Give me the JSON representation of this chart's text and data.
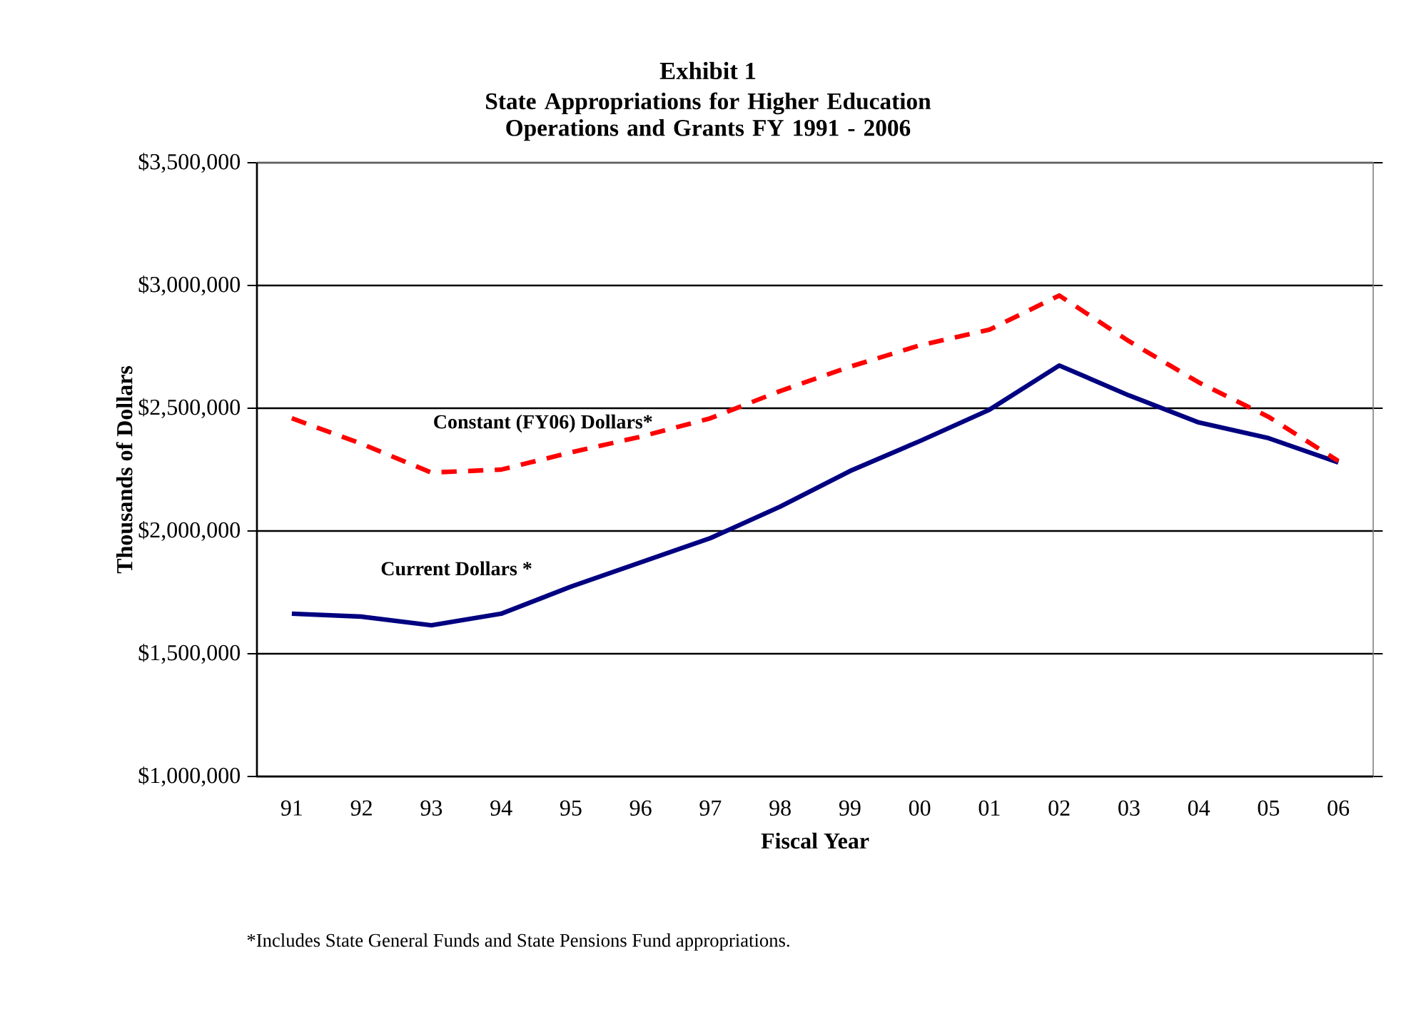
{
  "chart_data": {
    "type": "line",
    "title": "Exhibit 1",
    "subtitle": "State Appropriations for Higher Education Operations and Grants FY 1991 - 2006",
    "xlabel": "Fiscal Year",
    "ylabel": "Thousands of Dollars",
    "categories": [
      "91",
      "92",
      "93",
      "94",
      "95",
      "96",
      "97",
      "98",
      "99",
      "00",
      "01",
      "02",
      "03",
      "04",
      "05",
      "06"
    ],
    "series": [
      {
        "name": "Current Dollars *",
        "color": "#000080",
        "line_style": "solid",
        "values": [
          1663000,
          1651000,
          1616000,
          1663000,
          1773000,
          1872000,
          1971000,
          2099000,
          2244000,
          2366000,
          2494000,
          2674000,
          2552000,
          2442000,
          2378000,
          2279000
        ]
      },
      {
        "name": "Constant (FY06) Dollars*",
        "color": "#ff0000",
        "line_style": "dashed",
        "values": [
          2459000,
          2355000,
          2238000,
          2250000,
          2320000,
          2384000,
          2459000,
          2570000,
          2669000,
          2756000,
          2820000,
          2959000,
          2773000,
          2605000,
          2465000,
          2285000
        ]
      }
    ],
    "ylim": [
      1000000,
      3500000
    ],
    "yticks": [
      {
        "value": 1000000,
        "label": "$1,000,000"
      },
      {
        "value": 1500000,
        "label": "$1,500,000"
      },
      {
        "value": 2000000,
        "label": "$2,000,000"
      },
      {
        "value": 2500000,
        "label": "$2,500,000"
      },
      {
        "value": 3000000,
        "label": "$3,000,000"
      },
      {
        "value": 3500000,
        "label": "$3,500,000"
      }
    ],
    "grid": "y",
    "legend": false,
    "marker": "none",
    "annotations": [
      "*Includes State General Funds and State Pensions Fund appropriations."
    ]
  }
}
